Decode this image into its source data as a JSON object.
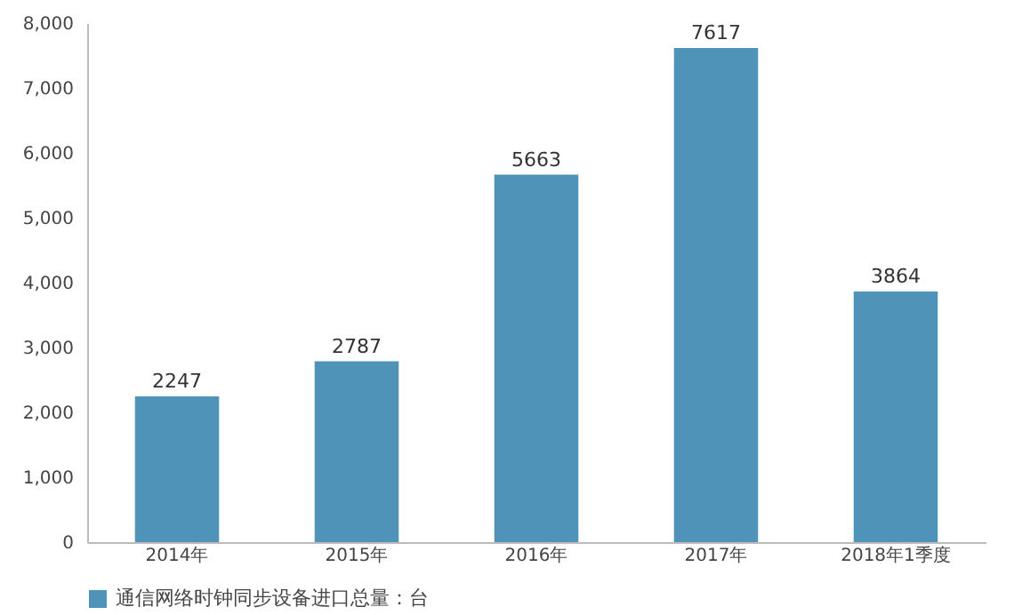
{
  "chart_data": {
    "type": "bar",
    "categories": [
      "2014年",
      "2015年",
      "2016年",
      "2017年",
      "2018年1季度"
    ],
    "series": [
      {
        "name": "通信网络时钟同步设备进口总量：台",
        "color": "#4f93b8",
        "values": [
          2247,
          2787,
          5663,
          7617,
          3864
        ]
      }
    ],
    "ylim": [
      0,
      8000
    ],
    "yticks": [
      0,
      {
        "value": 1000,
        "label": "1,000"
      },
      {
        "value": 2000,
        "label": "2,000"
      },
      {
        "value": 3000,
        "label": "3,000"
      },
      {
        "value": 4000,
        "label": "4,000"
      },
      {
        "value": 5000,
        "label": "5,000"
      },
      {
        "value": 6000,
        "label": "6,000"
      },
      {
        "value": 7000,
        "label": "7,000"
      },
      {
        "value": 8000,
        "label": "8,000"
      }
    ],
    "grid": false,
    "legend": "bottom",
    "data_labels": true
  }
}
